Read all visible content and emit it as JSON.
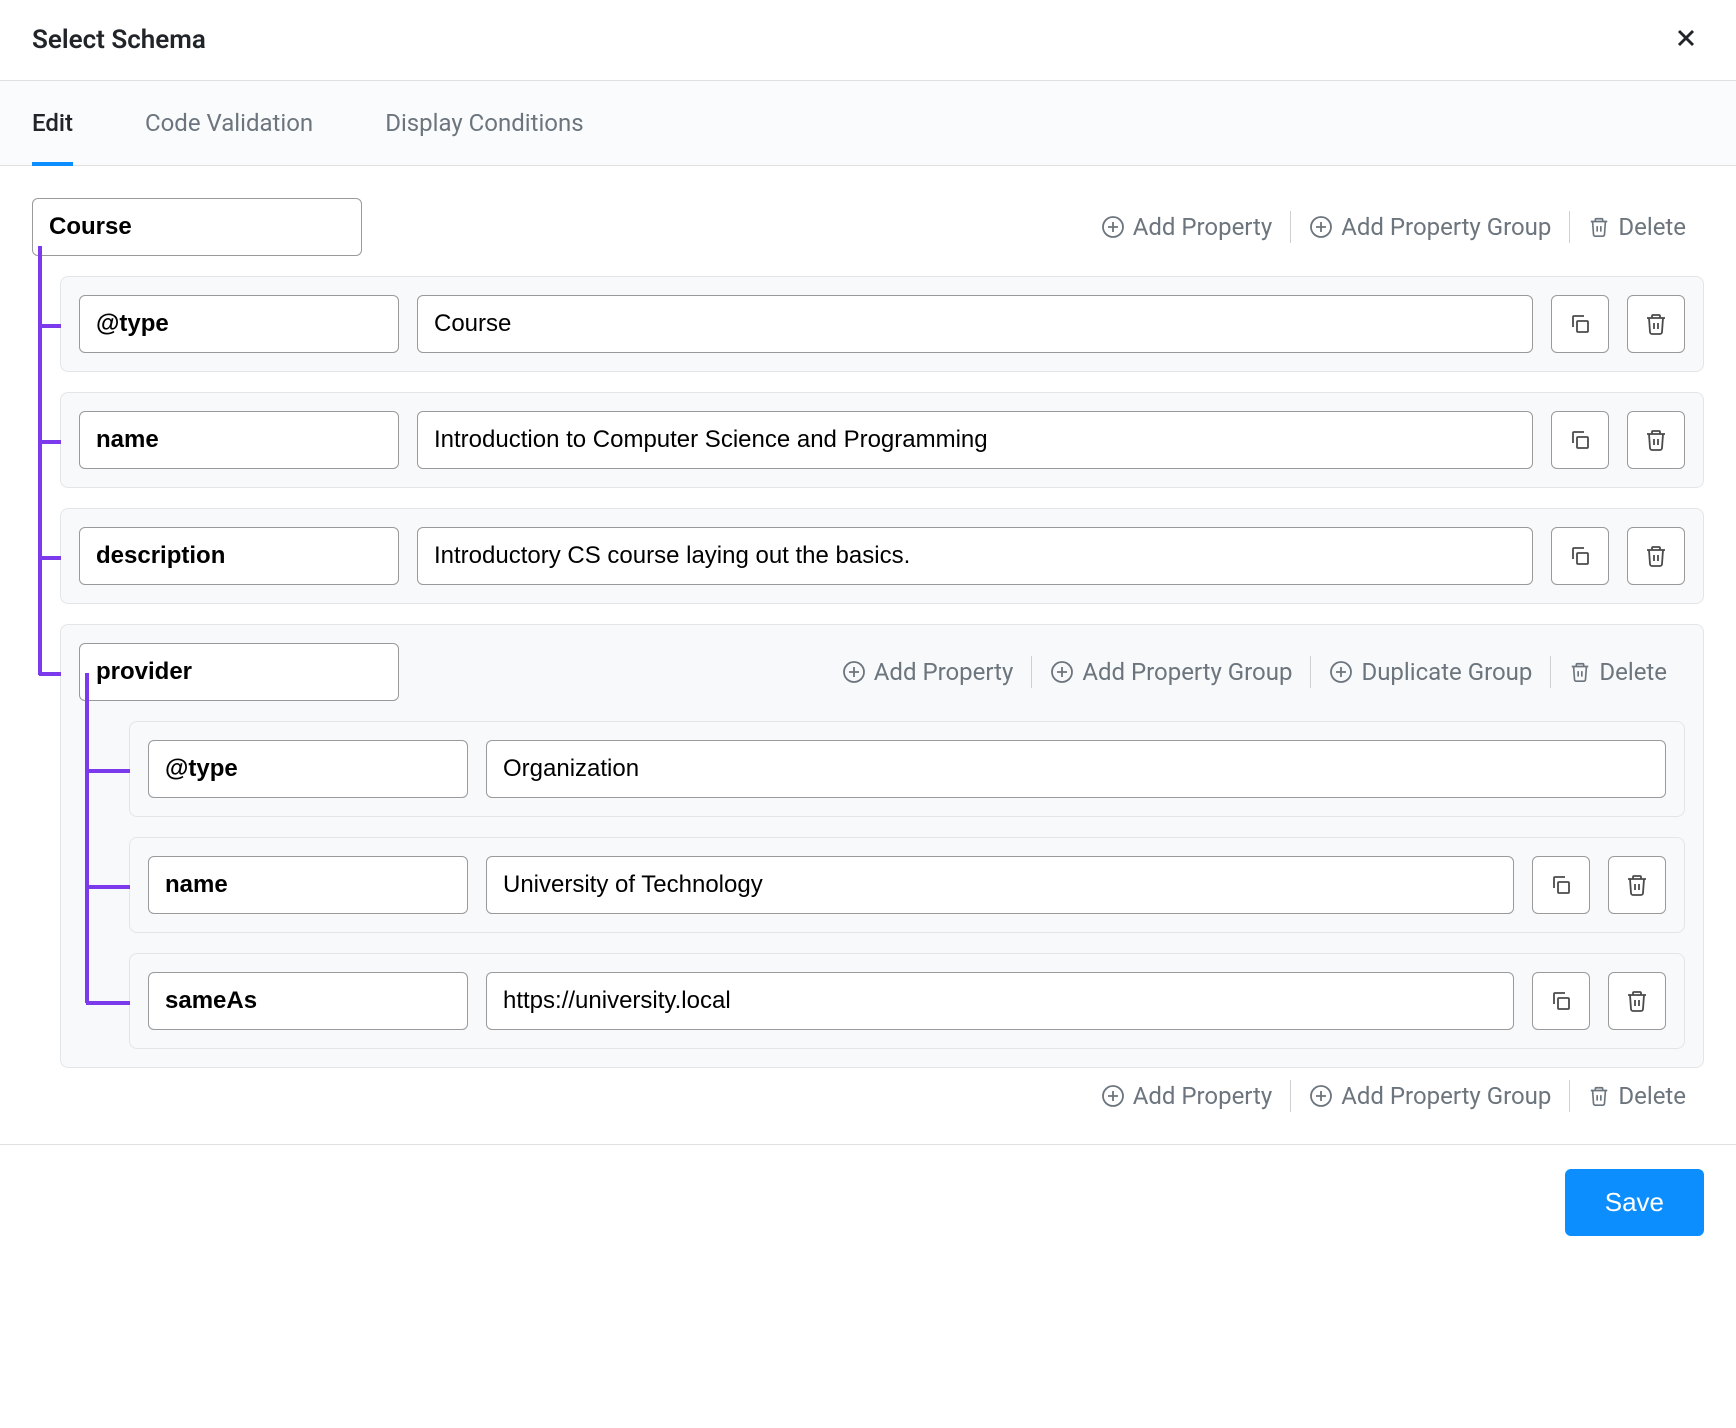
{
  "header": {
    "title": "Select Schema"
  },
  "tabs": {
    "edit": "Edit",
    "code": "Code Validation",
    "display": "Display Conditions"
  },
  "actions": {
    "add_property": "Add Property",
    "add_group": "Add Property Group",
    "duplicate_group": "Duplicate Group",
    "delete": "Delete"
  },
  "schema": {
    "root": "Course",
    "props": [
      {
        "key": "@type",
        "value": "Course"
      },
      {
        "key": "name",
        "value": "Introduction to Computer Science and Programming"
      },
      {
        "key": "description",
        "value": "Introductory CS course laying out the basics."
      }
    ],
    "group": {
      "key": "provider",
      "props": [
        {
          "key": "@type",
          "value": "Organization",
          "no_actions": true
        },
        {
          "key": "name",
          "value": "University of Technology"
        },
        {
          "key": "sameAs",
          "value": "https://university.local"
        }
      ]
    }
  },
  "footer": {
    "save": "Save"
  },
  "style": {
    "accent": "#0d8eff",
    "tree": "#7c3aed",
    "border": "#9a9a9a",
    "bg_row": "#f8f9fa",
    "text_muted": "#6c757d"
  }
}
